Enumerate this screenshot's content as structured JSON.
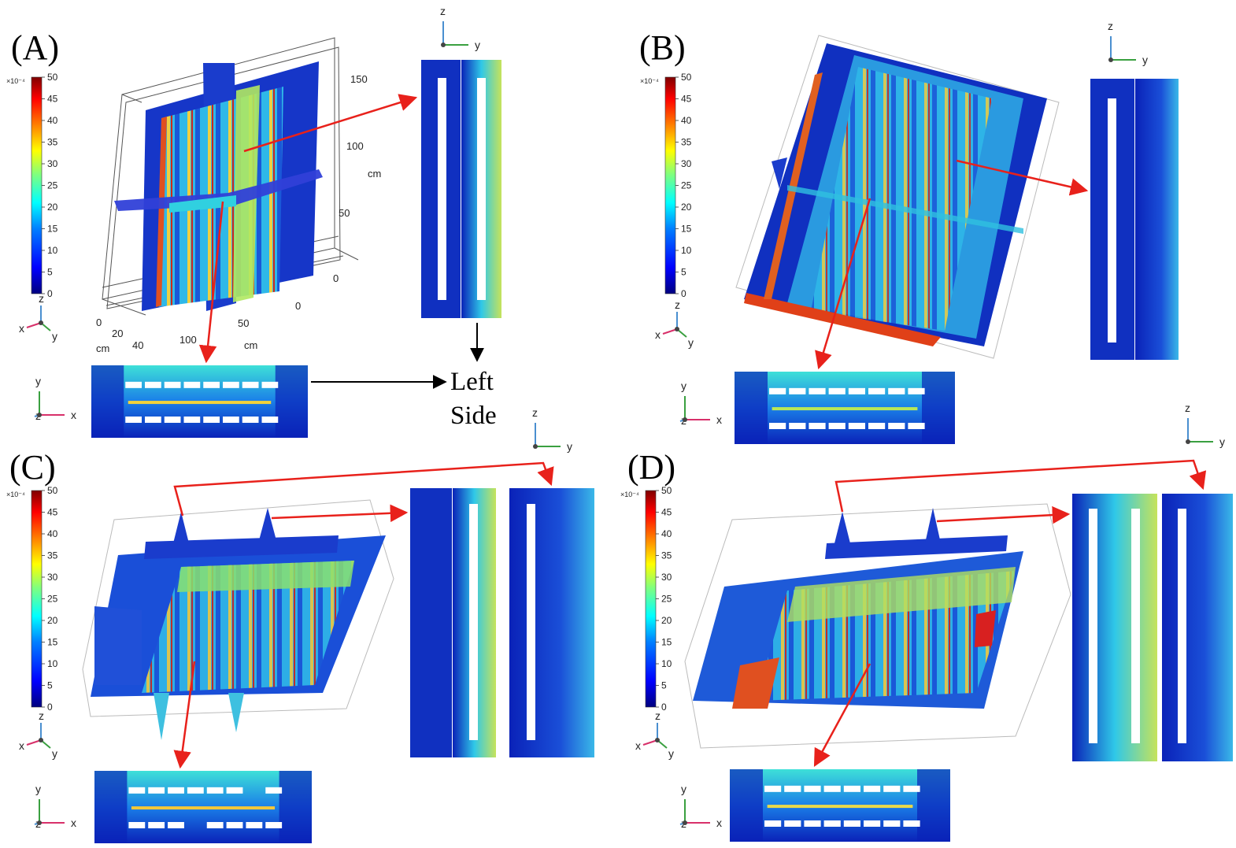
{
  "panels": [
    {
      "id": "A",
      "label": "(A)"
    },
    {
      "id": "B",
      "label": "(B)"
    },
    {
      "id": "C",
      "label": "(C)"
    },
    {
      "id": "D",
      "label": "(D)"
    }
  ],
  "colorbar": {
    "exponent_label": "×10⁻⁴",
    "ticks": [
      "50",
      "45",
      "40",
      "35",
      "30",
      "25",
      "20",
      "15",
      "10",
      "5",
      "0"
    ],
    "colors": [
      "#00007f",
      "#0000ff",
      "#007fff",
      "#00ffff",
      "#7fff7f",
      "#ffff00",
      "#ff7f00",
      "#ff0000",
      "#7f0000"
    ]
  },
  "axes": {
    "x": "x",
    "y": "y",
    "z": "z",
    "x_color": "#d8306a",
    "y_color": "#3aa040",
    "z_color": "#4a8fd0"
  },
  "panel_a_dims": {
    "height_ticks": [
      "150",
      "100",
      "50",
      "0"
    ],
    "height_unit": "cm",
    "width_ticks": [
      "0",
      "50"
    ],
    "depth_ticks": [
      "0",
      "20",
      "40"
    ],
    "depth_unit": "cm",
    "length_ticks": [
      "100"
    ],
    "length_unit": "cm"
  },
  "annotation": {
    "line1": "Left",
    "line2": "Side"
  },
  "colors": {
    "arrow_red": "#e8211b",
    "arrow_black": "#000000",
    "field_low": "#0a22b8",
    "field_mid": "#2fc8e8",
    "field_high": "#f2d23a"
  }
}
